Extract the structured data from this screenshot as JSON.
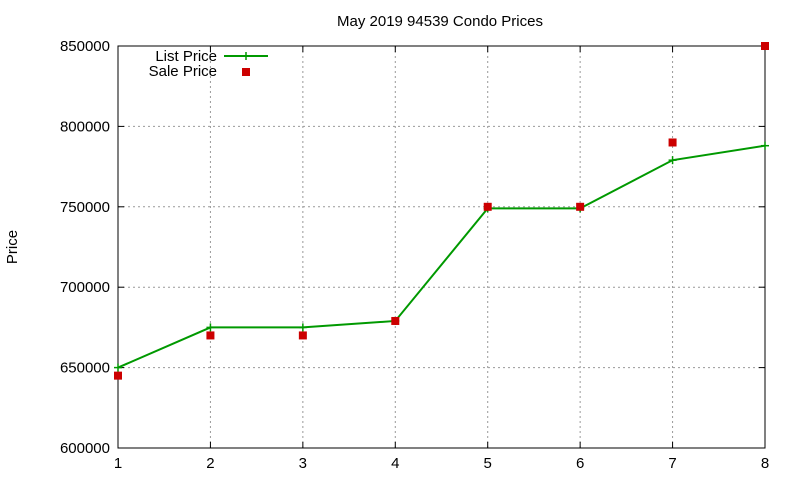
{
  "chart_data": {
    "type": "line",
    "title": "May 2019 94539 Condo Prices",
    "xlabel": "",
    "ylabel": "Price",
    "x": [
      1,
      2,
      3,
      4,
      5,
      6,
      7,
      8
    ],
    "xlim": [
      1,
      8
    ],
    "ylim": [
      600000,
      850000
    ],
    "x_ticks": [
      "1",
      "2",
      "3",
      "4",
      "5",
      "6",
      "7",
      "8"
    ],
    "y_ticks": [
      "600000",
      "650000",
      "700000",
      "750000",
      "800000",
      "850000"
    ],
    "grid": true,
    "legend_position": "top-left",
    "series": [
      {
        "name": "List Price",
        "style": "line-with-plus-markers",
        "color": "#009900",
        "values": [
          650000,
          675000,
          675000,
          679000,
          749000,
          749000,
          779000,
          788000
        ]
      },
      {
        "name": "Sale Price",
        "style": "square-markers",
        "color": "#cc0000",
        "values": [
          645000,
          670000,
          670000,
          679000,
          750000,
          750000,
          790000,
          850000
        ]
      }
    ]
  }
}
